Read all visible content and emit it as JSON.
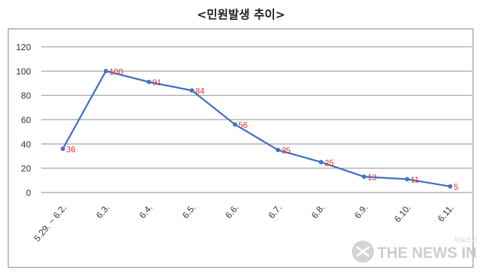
{
  "chart_data": {
    "type": "line",
    "title": "<민원발생 추이>",
    "categories": [
      "5.29. ~ 6.2.",
      "6.3.",
      "6.4.",
      "6.5.",
      "6.6.",
      "6.7.",
      "6.8.",
      "6.9.",
      "6.10.",
      "6.11."
    ],
    "series": [
      {
        "values": [
          36,
          100,
          91,
          84,
          56,
          35,
          25,
          13,
          11,
          5
        ]
      }
    ],
    "data_labels": [
      "36",
      "100",
      "91",
      "84",
      "56",
      "35",
      "25",
      "13",
      "11",
      "5"
    ],
    "ylim": [
      0,
      120
    ],
    "yticks": [
      "0",
      "20",
      "40",
      "60",
      "80",
      "100",
      "120"
    ],
    "xlabel": "",
    "ylabel": "",
    "grid": true,
    "legend": "none",
    "colors": {
      "line": "#4472c4",
      "marker": "#4472c4",
      "label": "#e0302a",
      "grid": "#888888",
      "frame": "#7a7a7a"
    }
  },
  "watermark": {
    "text": "THE NEWS IN",
    "small_text": "더뉴스인",
    "icon": "news-logo-icon"
  }
}
